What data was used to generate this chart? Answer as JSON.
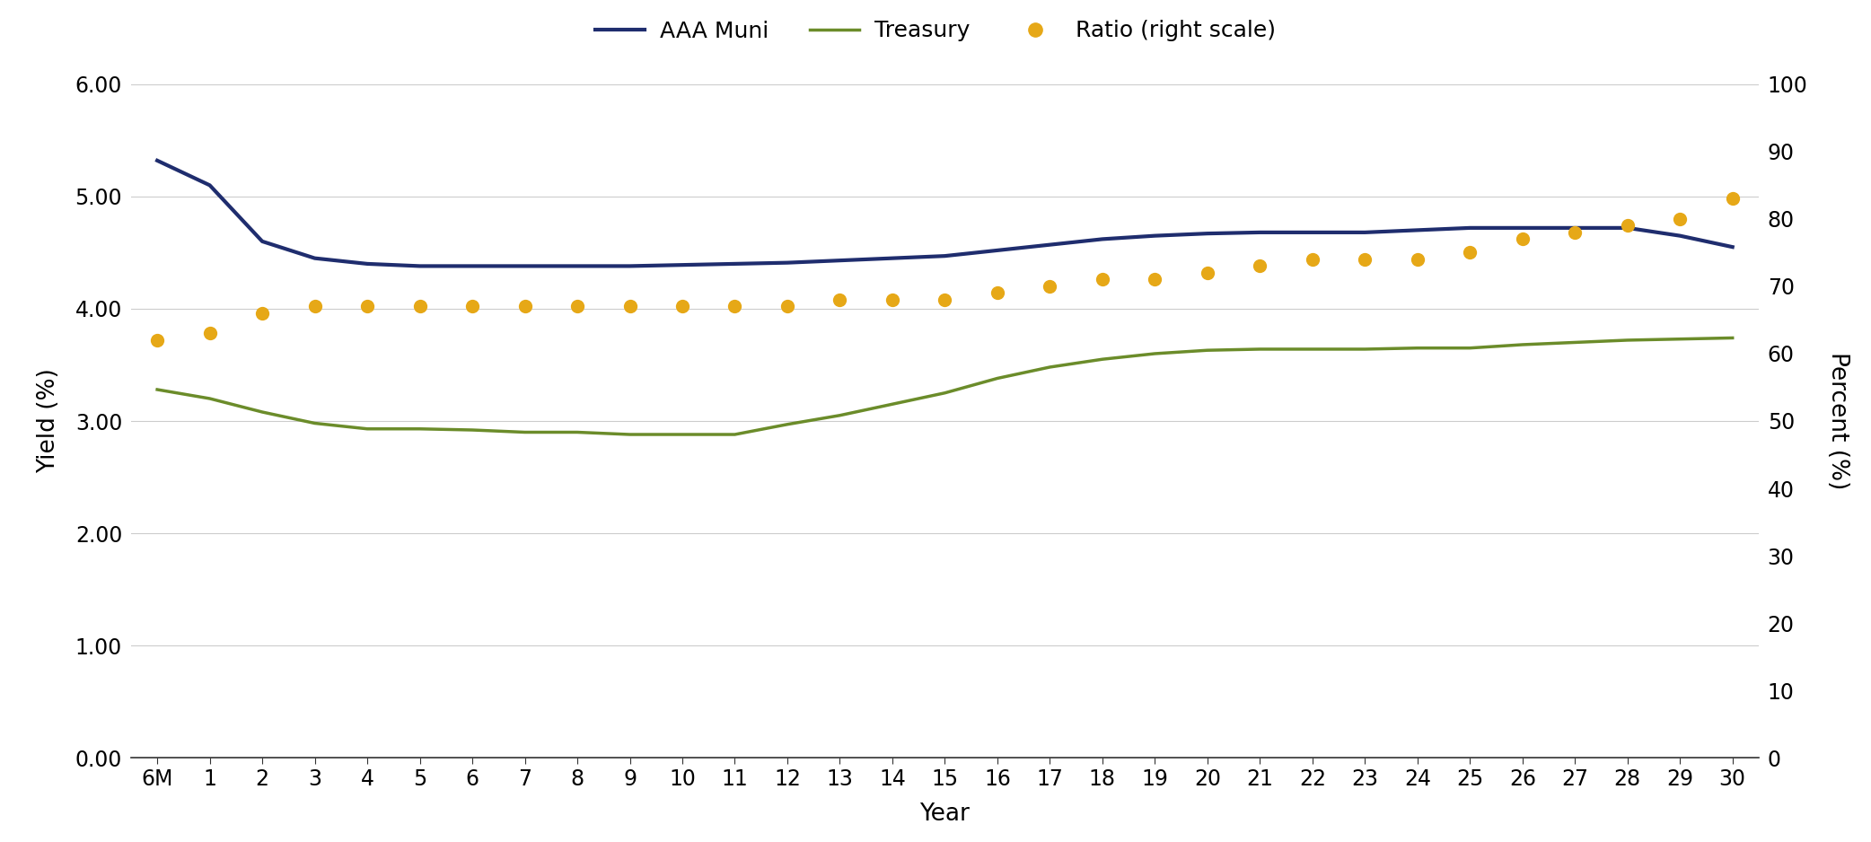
{
  "x_labels": [
    "6M",
    "1",
    "2",
    "3",
    "4",
    "5",
    "6",
    "7",
    "8",
    "9",
    "10",
    "11",
    "12",
    "13",
    "14",
    "15",
    "16",
    "17",
    "18",
    "19",
    "20",
    "21",
    "22",
    "23",
    "24",
    "25",
    "26",
    "27",
    "28",
    "29",
    "30"
  ],
  "x_indices": [
    0,
    1,
    2,
    3,
    4,
    5,
    6,
    7,
    8,
    9,
    10,
    11,
    12,
    13,
    14,
    15,
    16,
    17,
    18,
    19,
    20,
    21,
    22,
    23,
    24,
    25,
    26,
    27,
    28,
    29,
    30
  ],
  "aaa_muni": [
    5.32,
    5.1,
    4.6,
    4.45,
    4.4,
    4.38,
    4.38,
    4.38,
    4.38,
    4.38,
    4.39,
    4.4,
    4.41,
    4.43,
    4.45,
    4.47,
    4.52,
    4.57,
    4.62,
    4.65,
    4.67,
    4.68,
    4.68,
    4.68,
    4.7,
    4.72,
    4.72,
    4.72,
    4.72,
    4.65,
    4.55
  ],
  "treasury": [
    3.28,
    3.2,
    3.08,
    2.98,
    2.93,
    2.93,
    2.92,
    2.9,
    2.9,
    2.88,
    2.88,
    2.88,
    2.97,
    3.05,
    3.15,
    3.25,
    3.38,
    3.48,
    3.55,
    3.6,
    3.63,
    3.64,
    3.64,
    3.64,
    3.65,
    3.65,
    3.68,
    3.7,
    3.72,
    3.73,
    3.74
  ],
  "ratio": [
    62,
    63,
    66,
    67,
    67,
    67,
    67,
    67,
    67,
    67,
    67,
    67,
    67,
    68,
    68,
    68,
    69,
    70,
    71,
    71,
    72,
    73,
    74,
    74,
    74,
    75,
    77,
    78,
    79,
    80,
    83
  ],
  "muni_color": "#1f2d6e",
  "treasury_color": "#6b8c2a",
  "ratio_color": "#e6a817",
  "background_color": "#ffffff",
  "grid_color": "#cccccc",
  "ylabel_left": "Yield (%)",
  "ylabel_right": "Percent (%)",
  "xlabel": "Year",
  "ylim_left": [
    0.0,
    6.0
  ],
  "ylim_right": [
    0,
    100
  ],
  "yticks_left": [
    0.0,
    1.0,
    2.0,
    3.0,
    4.0,
    5.0,
    6.0
  ],
  "yticks_right": [
    0,
    10,
    20,
    30,
    40,
    50,
    60,
    70,
    80,
    90,
    100
  ],
  "legend_labels": [
    "AAA Muni",
    "Treasury",
    "Ratio (right scale)"
  ],
  "ratio_marker": "o",
  "muni_linewidth": 3.0,
  "treasury_linewidth": 2.5,
  "ratio_markersize": 11
}
